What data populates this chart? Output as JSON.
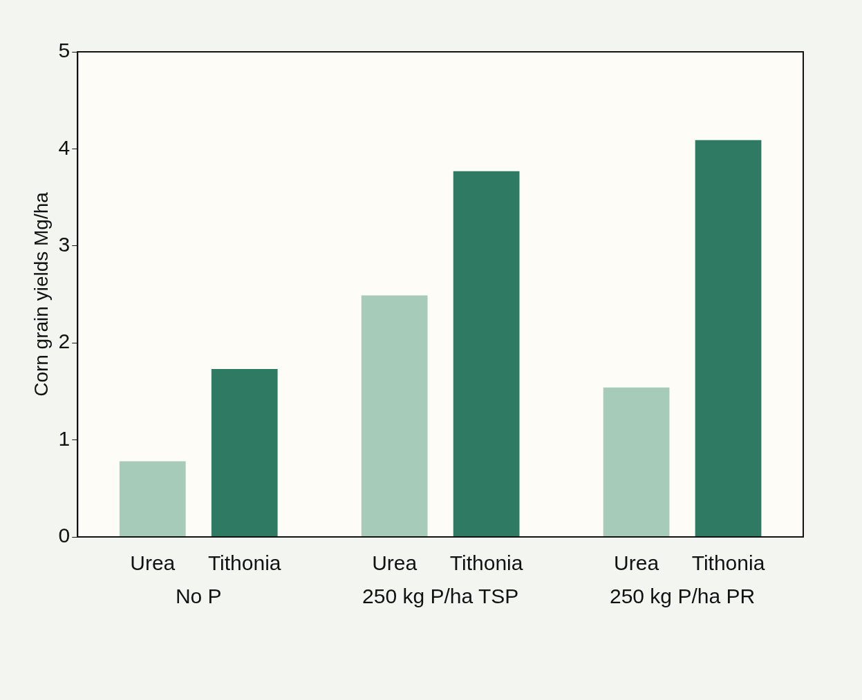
{
  "chart_data": {
    "type": "bar",
    "ylabel": "Corn grain yields Mg/ha",
    "categories": [
      "No P",
      "250 kg P/ha TSP",
      "250 kg P/ha PR"
    ],
    "series": [
      {
        "name": "Urea",
        "color": "#a6cbb8",
        "values": [
          0.78,
          2.49,
          1.54
        ]
      },
      {
        "name": "Tithonia",
        "color": "#2e7a62",
        "values": [
          1.73,
          3.77,
          4.09
        ]
      }
    ],
    "ylim": [
      0,
      5
    ],
    "yticks": [
      0,
      1,
      2,
      3,
      4,
      5
    ],
    "grid": false,
    "legend": false
  }
}
